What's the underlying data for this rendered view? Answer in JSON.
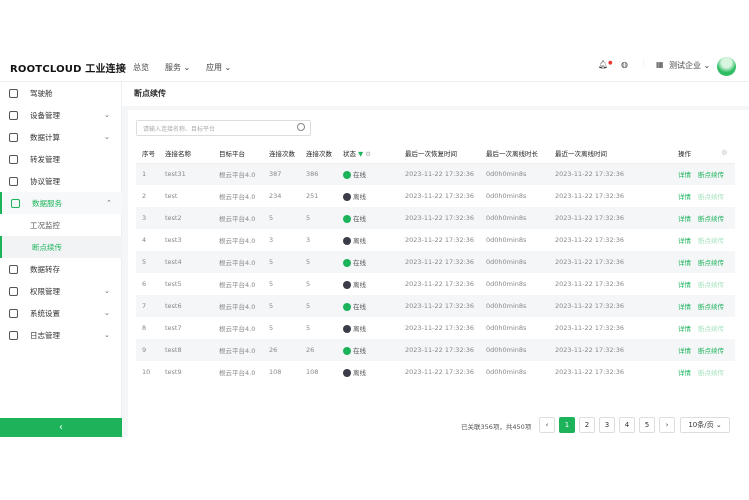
{
  "header": {
    "logo": "ROOTCLOUD 工业连接",
    "nav": [
      "总览",
      "服务",
      "应用"
    ],
    "company": "测试企业"
  },
  "sidebar": {
    "items": [
      {
        "label": "驾驶舱",
        "chevron": false
      },
      {
        "label": "设备管理",
        "chevron": true
      },
      {
        "label": "数据计算",
        "chevron": true
      },
      {
        "label": "转发管理",
        "chevron": false
      },
      {
        "label": "协议管理",
        "chevron": false
      },
      {
        "label": "数据服务",
        "chevron": true,
        "active": true,
        "children": [
          "工况监控",
          "断点续传"
        ]
      },
      {
        "label": "数据转存",
        "chevron": false
      },
      {
        "label": "权限管理",
        "chevron": true
      },
      {
        "label": "系统设置",
        "chevron": true
      },
      {
        "label": "日志管理",
        "chevron": true
      }
    ],
    "collapse": "‹"
  },
  "page": {
    "title": "断点续传",
    "search_placeholder": "请输入连接名称、目标平台"
  },
  "table": {
    "columns": [
      "序号",
      "连接名称",
      "目标平台",
      "连接次数",
      "连接次数",
      "状态",
      "最后一次恢复时间",
      "最后一次离线时长",
      "最近一次离线时间",
      "操作"
    ],
    "rows": [
      [
        "1",
        "test31",
        "根云平台4.0",
        "387",
        "386",
        "在线",
        "2023-11-22 17:32:36",
        "0d0h0min8s",
        "2023-11-22 17:32:36"
      ],
      [
        "2",
        "test",
        "根云平台4.0",
        "234",
        "251",
        "离线",
        "2023-11-22 17:32:36",
        "0d0h0min8s",
        "2023-11-22 17:32:36"
      ],
      [
        "3",
        "test2",
        "根云平台4.0",
        "5",
        "5",
        "在线",
        "2023-11-22 17:32:36",
        "0d0h0min8s",
        "2023-11-22 17:32:36"
      ],
      [
        "4",
        "test3",
        "根云平台4.0",
        "3",
        "3",
        "离线",
        "2023-11-22 17:32:36",
        "0d0h0min8s",
        "2023-11-22 17:32:36"
      ],
      [
        "5",
        "test4",
        "根云平台4.0",
        "5",
        "5",
        "在线",
        "2023-11-22 17:32:36",
        "0d0h0min8s",
        "2023-11-22 17:32:36"
      ],
      [
        "6",
        "test5",
        "根云平台4.0",
        "5",
        "5",
        "离线",
        "2023-11-22 17:32:36",
        "0d0h0min8s",
        "2023-11-22 17:32:36"
      ],
      [
        "7",
        "test6",
        "根云平台4.0",
        "5",
        "5",
        "在线",
        "2023-11-22 17:32:36",
        "0d0h0min8s",
        "2023-11-22 17:32:36"
      ],
      [
        "8",
        "test7",
        "根云平台4.0",
        "5",
        "5",
        "离线",
        "2023-11-22 17:32:36",
        "0d0h0min8s",
        "2023-11-22 17:32:36"
      ],
      [
        "9",
        "test8",
        "根云平台4.0",
        "26",
        "26",
        "在线",
        "2023-11-22 17:32:36",
        "0d0h0min8s",
        "2023-11-22 17:32:36"
      ],
      [
        "10",
        "test9",
        "根云平台4.0",
        "108",
        "108",
        "离线",
        "2023-11-22 17:32:36",
        "0d0h0min8s",
        "2023-11-22 17:32:36"
      ]
    ],
    "actions": [
      "详情",
      "断点续传"
    ],
    "online_label": "在线"
  },
  "pagination": {
    "summary": "已关联356项，共450项",
    "pages": [
      "1",
      "2",
      "3",
      "4",
      "5"
    ],
    "current": "1",
    "page_size": "10条/页"
  },
  "colors": {
    "accent": "#1cb35a",
    "offline": "#3a3d48"
  }
}
